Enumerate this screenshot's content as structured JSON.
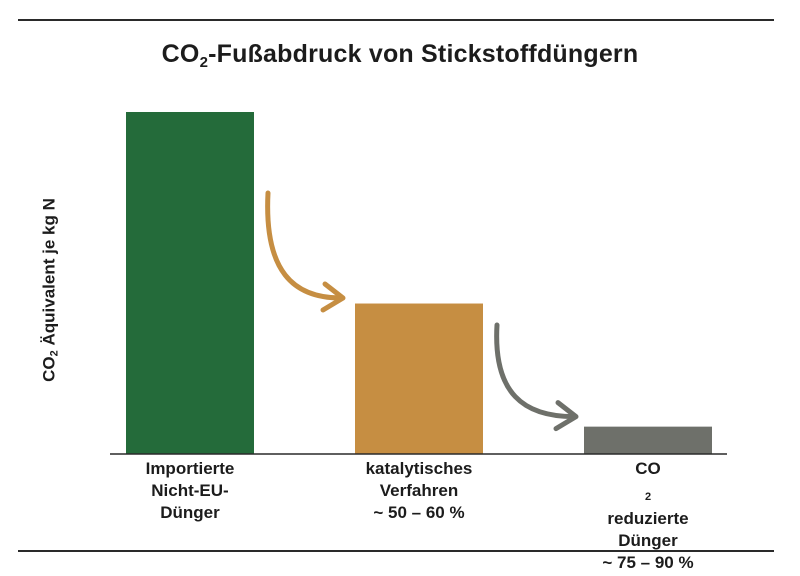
{
  "title": {
    "prefix": "CO",
    "sub": "2",
    "suffix": "-Fußabdruck von Stickstoffdüngern"
  },
  "chart_data": {
    "type": "bar",
    "title": "CO2-Fußabdruck von Stickstoffdüngern",
    "ylabel": "CO2 Äquivalent je kg N",
    "categories": [
      "Importierte Nicht-EU-Dünger",
      "katalytisches Verfahren ~50–60 %",
      "CO2 reduzierte Dünger ~75–90 %"
    ],
    "values": [
      100,
      44,
      8
    ],
    "ylim": [
      0,
      100
    ],
    "colors": [
      "#246b3a",
      "#c68e42",
      "#6e706a"
    ],
    "arrow_colors": [
      "#c68e42",
      "#6e706a"
    ],
    "grid": false,
    "legend": "none"
  },
  "axis": {
    "y_prefix": "CO",
    "y_sub": "2",
    "y_suffix": " Äquivalent je kg N"
  },
  "labels": {
    "c1": {
      "line1": "Importierte",
      "line2": "Nicht-EU-",
      "line3": "Dünger"
    },
    "c2": {
      "line1": "katalytisches",
      "line2": "Verfahren",
      "line3": "~ 50 – 60 %"
    },
    "c3": {
      "line1_prefix": "CO",
      "line1_sub": "2",
      "line1_suffix": " reduzierte",
      "line2": "Dünger",
      "line3": "~ 75 – 90 %"
    }
  }
}
